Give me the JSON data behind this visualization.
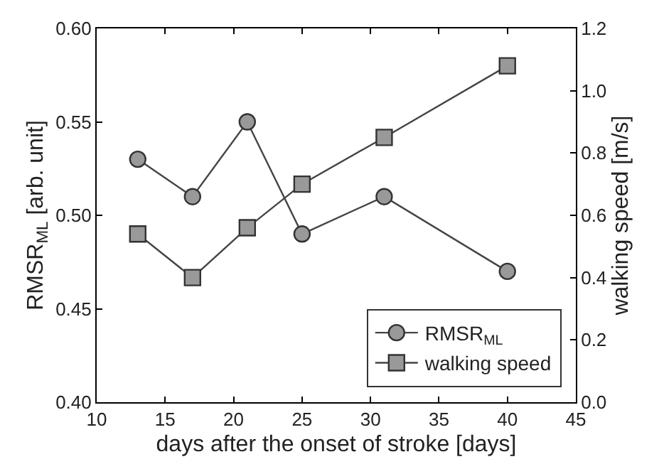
{
  "chart_data": {
    "type": "line",
    "xlabel": "days after the onset of stroke [days]",
    "ylabel": "RMSR$_{ML}$ [arb. unit]",
    "y2label": "walking speed [m/s]",
    "x": [
      13,
      17,
      21,
      25,
      31,
      40
    ],
    "series": [
      {
        "name": "RMSR$_{ML}$",
        "color": "#999999",
        "marker": "circle",
        "values": [
          0.53,
          0.51,
          0.55,
          0.49,
          0.51,
          0.47
        ]
      },
      {
        "name": "walking speed",
        "color": "#999999",
        "marker": "square",
        "axis": "y2",
        "values": [
          0.54,
          0.4,
          0.56,
          0.7,
          0.85,
          1.08
        ]
      }
    ],
    "xlim": [
      10,
      45
    ],
    "xticks": [
      10,
      15,
      20,
      25,
      30,
      35,
      40,
      45
    ],
    "ylim": [
      0.4,
      0.6
    ],
    "yticks": [
      {
        "value": 0.4,
        "label": "0.40"
      },
      {
        "value": 0.45,
        "label": "0.45"
      },
      {
        "value": 0.5,
        "label": "0.50"
      },
      {
        "value": 0.55,
        "label": "0.55"
      },
      {
        "value": 0.6,
        "label": "0.60"
      }
    ],
    "y2lim": [
      0.0,
      1.2
    ],
    "y2ticks": [
      {
        "value": 0.0,
        "label": "0.0"
      },
      {
        "value": 0.2,
        "label": "0.2"
      },
      {
        "value": 0.4,
        "label": "0.4"
      },
      {
        "value": 0.6,
        "label": "0.6"
      },
      {
        "value": 0.8,
        "label": "0.8"
      },
      {
        "value": 1.0,
        "label": "1.0"
      },
      {
        "value": 1.2,
        "label": "1.2"
      }
    ],
    "legend": "bottom right"
  }
}
